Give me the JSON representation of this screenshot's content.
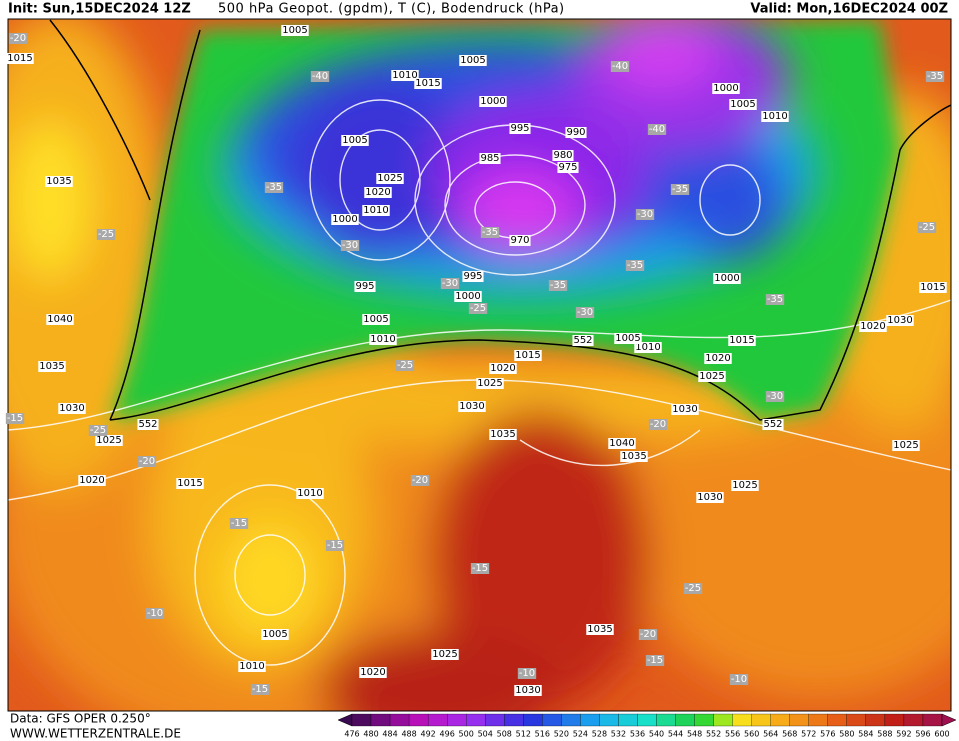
{
  "header": {
    "init": "Init: Sun,15DEC2024 12Z",
    "title": "500 hPa Geopot. (gpdm), T (C), Bodendruck (hPa)",
    "valid": "Valid: Mon,16DEC2024 00Z"
  },
  "isobar_labels": [
    "1005",
    "1005",
    "1010",
    "1015",
    "1000",
    "995",
    "990",
    "985",
    "980",
    "975",
    "970",
    "1005",
    "1025",
    "1020",
    "1010",
    "1000",
    "995",
    "995",
    "1000",
    "1005",
    "1010",
    "1015",
    "1020",
    "1025",
    "1030",
    "1035",
    "1040",
    "1035",
    "1030",
    "1025",
    "1020",
    "1010",
    "1005",
    "1000",
    "1000",
    "1005",
    "1010",
    "1015",
    "1020",
    "1030",
    "1015",
    "1025",
    "1025",
    "1030",
    "1010",
    "1015",
    "1020",
    "1025",
    "1030",
    "1035",
    "1040",
    "1035",
    "1015",
    "1005",
    "1010",
    "1020",
    "1025",
    "1035",
    "1030"
  ],
  "temperature_labels": [
    "-20",
    "-40",
    "-40",
    "-40",
    "-35",
    "-35",
    "-35",
    "-30",
    "-30",
    "-30",
    "-35",
    "-35",
    "-35",
    "-30",
    "-25",
    "-35",
    "-25",
    "-25",
    "-25",
    "-25",
    "-20",
    "-20",
    "-20",
    "-15",
    "-15",
    "-15",
    "-15",
    "-10",
    "-10",
    "-10",
    "-15",
    "-20",
    "-15",
    "-25",
    "-30"
  ],
  "height_labels": [
    "552",
    "552",
    "552"
  ],
  "colorbar": {
    "labels": [
      476,
      480,
      484,
      488,
      492,
      496,
      500,
      504,
      508,
      512,
      516,
      520,
      524,
      528,
      532,
      536,
      540,
      544,
      548,
      552,
      556,
      560,
      564,
      568,
      572,
      576,
      580,
      584,
      588,
      592,
      596,
      600
    ]
  },
  "footer": {
    "data": "Data: GFS OPER 0.250°",
    "site": "WWW.WETTERZENTRALE.DE"
  }
}
